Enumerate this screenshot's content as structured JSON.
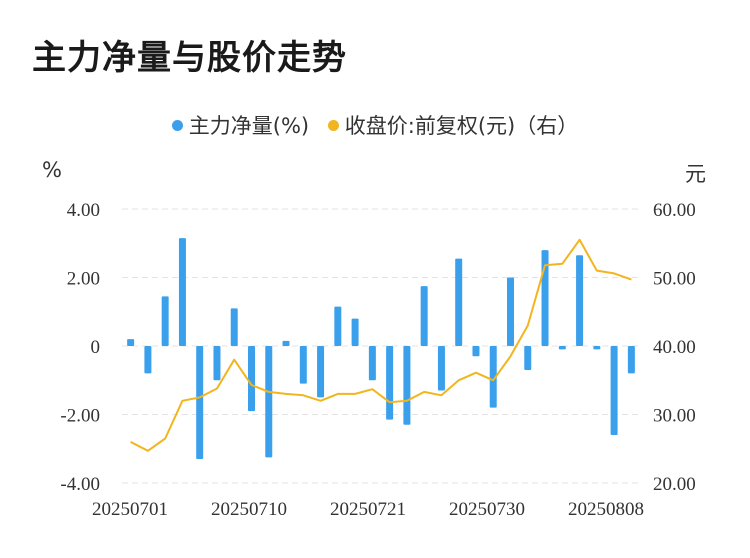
{
  "title": "主力净量与股价走势",
  "colors": {
    "bar": "#3AA0EC",
    "line": "#F2B51D",
    "grid": "#e3e3e3"
  },
  "chart_data": {
    "type": "bar+line",
    "legend": [
      {
        "name": "主力净量(%)",
        "color": "#3AA0EC"
      },
      {
        "name": "收盘价:前复权(元)（右）",
        "color": "#F2B51D"
      }
    ],
    "left_axis": {
      "unit": "%",
      "ylim": [
        -4,
        4
      ],
      "ticks": [
        "4.00",
        "2.00",
        "0",
        "-2.00",
        "-4.00"
      ]
    },
    "right_axis": {
      "unit": "元",
      "ylim": [
        20,
        60
      ],
      "ticks": [
        "60.00",
        "50.00",
        "40.00",
        "30.00",
        "20.00"
      ]
    },
    "x_tick_labels": [
      "20250701",
      "20250710",
      "20250721",
      "20250730",
      "20250808"
    ],
    "bars": [
      0.2,
      -0.8,
      1.45,
      3.15,
      -3.3,
      -1.0,
      1.1,
      -1.9,
      -3.25,
      0.15,
      -1.1,
      -1.5,
      1.15,
      0.8,
      -1.0,
      -2.15,
      -2.3,
      1.75,
      -1.3,
      2.55,
      -0.3,
      -1.8,
      2.0,
      -0.7,
      2.8,
      -0.1,
      2.65,
      -0.1,
      -2.6,
      -0.8
    ],
    "close": [
      26.0,
      24.7,
      26.5,
      32.0,
      32.5,
      33.8,
      38.0,
      34.3,
      33.3,
      33.0,
      32.8,
      32.0,
      33.0,
      33.0,
      33.7,
      31.8,
      32.0,
      33.3,
      32.8,
      35.0,
      36.1,
      35.0,
      38.5,
      43.0,
      51.8,
      52.0,
      55.5,
      51.0,
      50.6,
      49.7
    ]
  }
}
